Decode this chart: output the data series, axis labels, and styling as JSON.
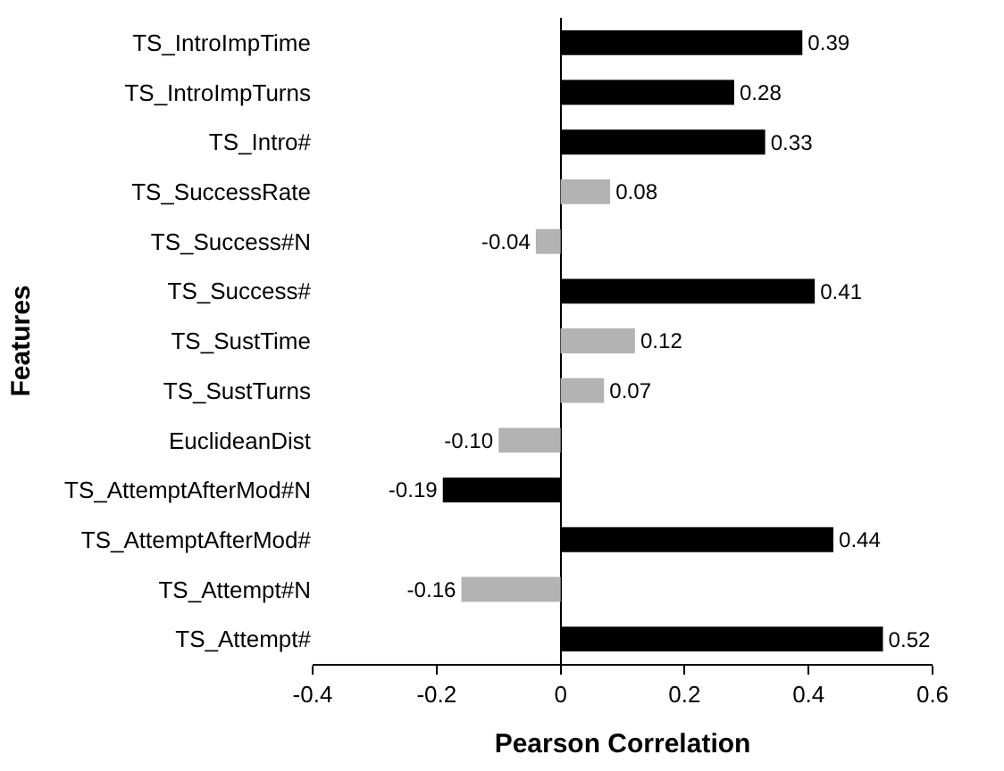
{
  "chart_data": {
    "type": "bar",
    "orientation": "horizontal",
    "xlabel": "Pearson Correlation",
    "ylabel": "Features",
    "categories": [
      "TS_IntroImpTime",
      "TS_IntroImpTurns",
      "TS_Intro#",
      "TS_SuccessRate",
      "TS_Success#N",
      "TS_Success#",
      "TS_SustTime",
      "TS_SustTurns",
      "EuclideanDist",
      "TS_AttemptAfterMod#N",
      "TS_AttemptAfterMod#",
      "TS_Attempt#N",
      "TS_Attempt#"
    ],
    "values": [
      0.39,
      0.28,
      0.33,
      0.08,
      -0.04,
      0.41,
      0.12,
      0.07,
      -0.1,
      -0.19,
      0.44,
      -0.16,
      0.52
    ],
    "value_labels": [
      "0.39",
      "0.28",
      "0.33",
      "0.08",
      "-0.04",
      "0.41",
      "0.12",
      "0.07",
      "-0.10",
      "-0.19",
      "0.44",
      "-0.16",
      "0.52"
    ],
    "colors": [
      "#000000",
      "#000000",
      "#000000",
      "#b3b3b3",
      "#b3b3b3",
      "#000000",
      "#b3b3b3",
      "#b3b3b3",
      "#b3b3b3",
      "#000000",
      "#000000",
      "#b3b3b3",
      "#000000"
    ],
    "xlim": [
      -0.4,
      0.6
    ],
    "xticks": [
      -0.4,
      -0.2,
      0,
      0.2,
      0.4,
      0.6
    ],
    "legend": false
  }
}
